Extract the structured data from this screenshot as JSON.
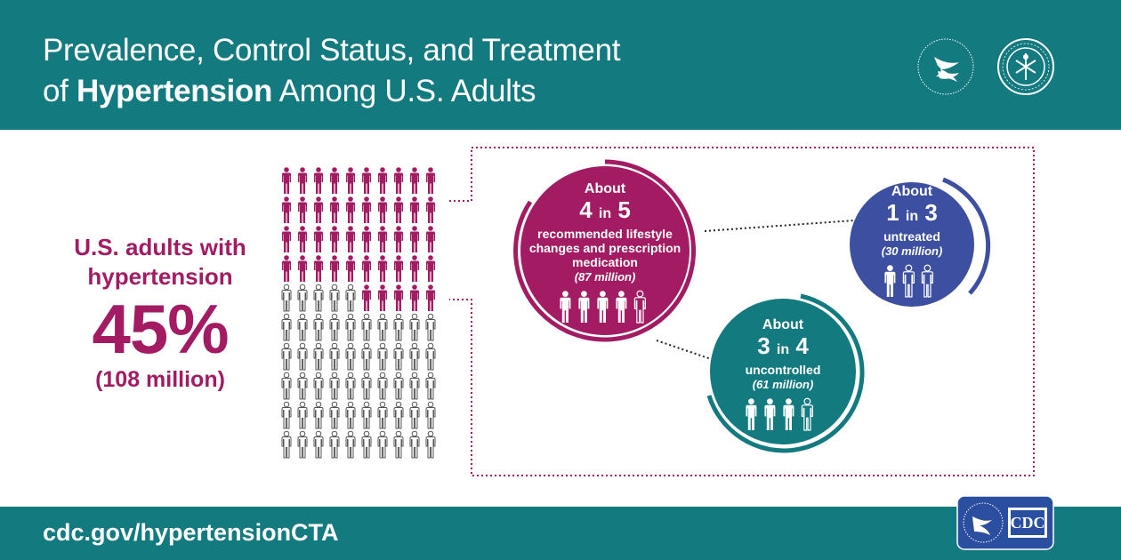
{
  "header": {
    "title_line1": "Prevalence, Control Status, and Treatment",
    "title_line2_pre": "of ",
    "title_line2_bold": "Hypertension",
    "title_line2_post": " Among U.S. Adults",
    "seal_left_icon": "hhs-eagle-seal-icon",
    "seal_right_icon": "public-health-service-seal-icon"
  },
  "prevalence": {
    "label": "U.S. adults with hypertension",
    "percent": "45%",
    "count": "(108 million)",
    "grid_total": 100,
    "grid_filled": 45
  },
  "circles": {
    "treatment": {
      "about": "About",
      "num": "4",
      "in": "in",
      "den": "5",
      "desc": "recommended lifestyle changes and prescription medication",
      "millions": "(87 million)",
      "filled_people": 4,
      "outline_people": 1
    },
    "untreated": {
      "about": "About",
      "num": "1",
      "in": "in",
      "den": "3",
      "desc": "untreated",
      "millions": "(30 million)",
      "filled_people": 1,
      "outline_people": 2
    },
    "uncontrolled": {
      "about": "About",
      "num": "3",
      "in": "in",
      "den": "4",
      "desc": "uncontrolled",
      "millions": "(61 million)",
      "filled_people": 3,
      "outline_people": 1
    }
  },
  "footer": {
    "url": "cdc.gov/hypertensionCTA",
    "logo_icon": "cdc-logo-icon",
    "logo_text": "CDC"
  },
  "colors": {
    "teal": "#137a80",
    "magenta": "#a31c63",
    "blue": "#3d4fa0",
    "outline_gray": "#555555"
  }
}
